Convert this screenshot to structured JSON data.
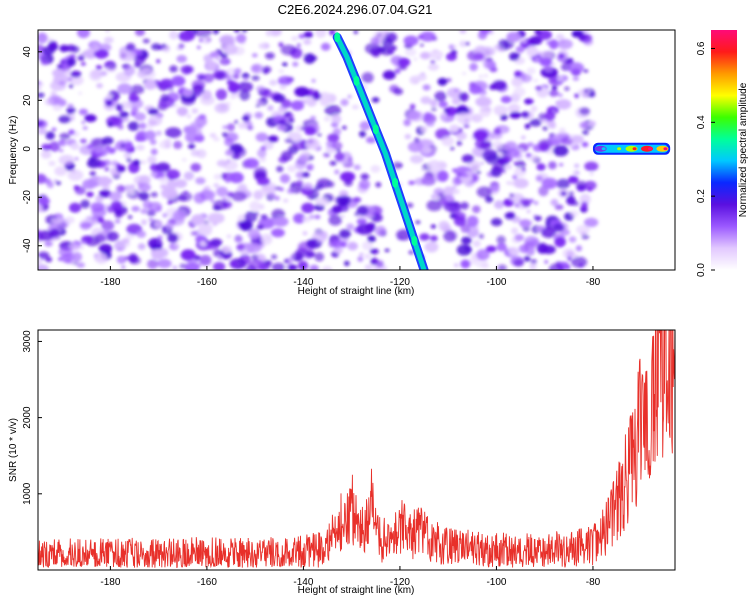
{
  "figure": {
    "title": "C2E6.2024.296.07.04.G21"
  },
  "colors": {
    "snr_line": "#e8302a",
    "frame": "#000000"
  },
  "chart_data": [
    {
      "type": "heatmap",
      "title": "C2E6.2024.296.07.04.G21",
      "xlabel": "Height of straight line (km)",
      "ylabel": "Frequency (Hz)",
      "xlim": [
        -195,
        -63
      ],
      "ylim": [
        -50,
        49
      ],
      "xticks": [
        -180,
        -160,
        -140,
        -120,
        -100,
        -80
      ],
      "yticks": [
        -40,
        -20,
        0,
        20,
        40
      ],
      "grid": false,
      "colorbar": {
        "label": "Normalized spectral amplitude",
        "range": [
          0,
          0.65
        ],
        "ticks": [
          0.0,
          0.2,
          0.4,
          0.6
        ],
        "colormap": [
          "#ffffff",
          "#e2c8ff",
          "#9b59ff",
          "#5a10e0",
          "#0a28ff",
          "#00c8ff",
          "#00ff9a",
          "#3cff00",
          "#ffff00",
          "#ff9a00",
          "#ff1a1a",
          "#ff0a78"
        ]
      },
      "features": [
        {
          "name": "diagonal signal track",
          "points": [
            [
              -133,
              46
            ],
            [
              -131,
              38
            ],
            [
              -129,
              28
            ],
            [
              -127,
              18
            ],
            [
              -125,
              8
            ],
            [
              -123,
              -2
            ],
            [
              -121,
              -14
            ],
            [
              -119,
              -26
            ],
            [
              -117,
              -38
            ],
            [
              -115,
              -50
            ]
          ],
          "peak": 0.3
        },
        {
          "name": "zero-frequency band",
          "x_range": [
            -80,
            -64
          ],
          "frequency": 0,
          "values": [
            0.15,
            0.3,
            0.45,
            0.6,
            0.5
          ]
        },
        {
          "name": "background noise",
          "x_range": [
            -195,
            -80
          ],
          "typical": 0.05
        },
        {
          "name": "noise-free gap",
          "x_range": [
            -80,
            -64
          ]
        }
      ]
    },
    {
      "type": "line",
      "xlabel": "Height of straight line (km)",
      "ylabel": "SNR (10 * v/v)",
      "xlim": [
        -195,
        -63
      ],
      "ylim": [
        0,
        3150
      ],
      "xticks": [
        -180,
        -160,
        -140,
        -120,
        -100,
        -80
      ],
      "yticks": [
        1000,
        2000,
        3000
      ],
      "grid": false,
      "series": [
        {
          "x": [
            -195,
            -190,
            -185,
            -180,
            -175,
            -170,
            -165,
            -160,
            -155,
            -150,
            -145,
            -140,
            -135,
            -132,
            -130,
            -128,
            -126,
            -124,
            -122,
            -120,
            -118,
            -116,
            -114,
            -112,
            -110,
            -105,
            -100,
            -95,
            -90,
            -85,
            -80,
            -78,
            -76,
            -74,
            -72,
            -70,
            -68,
            -67,
            -66,
            -65,
            -64,
            -63
          ],
          "y": [
            200,
            200,
            210,
            200,
            210,
            200,
            210,
            220,
            210,
            210,
            220,
            230,
            300,
            650,
            820,
            450,
            900,
            350,
            500,
            600,
            420,
            550,
            380,
            350,
            300,
            280,
            260,
            250,
            260,
            280,
            320,
            500,
            700,
            1000,
            1400,
            1900,
            2200,
            2600,
            2800,
            2500,
            3150,
            2300
          ],
          "noise": 120
        }
      ]
    }
  ]
}
